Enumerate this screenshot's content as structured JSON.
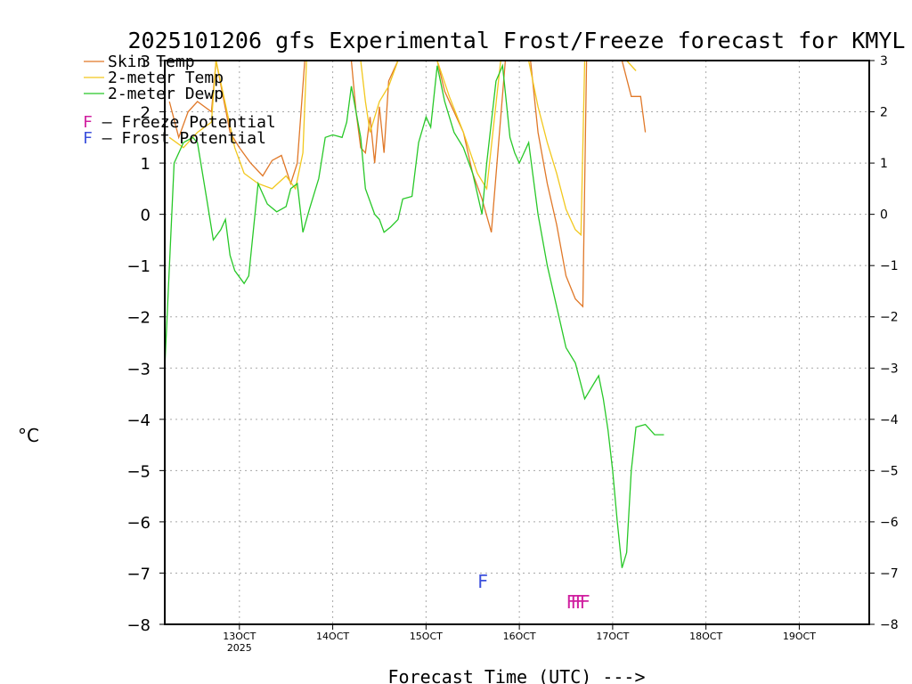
{
  "chart_data": {
    "type": "line",
    "title": "2025101206 gfs Experimental Frost/Freeze forecast for KMYL",
    "xlabel": "Forecast Time (UTC) --->",
    "ylabel": "°C",
    "xlim": [
      12.2,
      19.75
    ],
    "ylim": [
      -8,
      3
    ],
    "yticks": [
      -8,
      -7,
      -6,
      -5,
      -4,
      -3,
      -2,
      -1,
      0,
      1,
      2,
      3
    ],
    "ytick_labels": [
      "−8",
      "−7",
      "−6",
      "−5",
      "−4",
      "−3",
      "−2",
      "−1",
      "0",
      "1",
      "2",
      "3"
    ],
    "xticks": [
      {
        "x": 13,
        "label": "13OCT",
        "sublabel": "2025"
      },
      {
        "x": 14,
        "label": "14OCT"
      },
      {
        "x": 15,
        "label": "15OCT"
      },
      {
        "x": 16,
        "label": "16OCT"
      },
      {
        "x": 17,
        "label": "17OCT"
      },
      {
        "x": 18,
        "label": "18OCT"
      },
      {
        "x": 19,
        "label": "19OCT"
      }
    ],
    "grid": true,
    "series": [
      {
        "name": "Skin Temp",
        "color": "#e07828",
        "points": [
          [
            12.25,
            2.2
          ],
          [
            12.35,
            1.5
          ],
          [
            12.45,
            2.0
          ],
          [
            12.55,
            2.2
          ],
          [
            12.7,
            2.0
          ],
          [
            12.75,
            3.0
          ],
          [
            12.9,
            1.6
          ],
          [
            13.0,
            1.3
          ],
          [
            13.12,
            1.0
          ],
          [
            13.25,
            0.75
          ],
          [
            13.35,
            1.05
          ],
          [
            13.45,
            1.15
          ],
          [
            13.55,
            0.6
          ],
          [
            13.62,
            1.0
          ],
          [
            13.7,
            3.0
          ],
          [
            14.2,
            3.0
          ],
          [
            14.25,
            2.0
          ],
          [
            14.3,
            1.3
          ],
          [
            14.35,
            1.2
          ],
          [
            14.4,
            1.9
          ],
          [
            14.45,
            1.0
          ],
          [
            14.5,
            2.1
          ],
          [
            14.55,
            1.2
          ],
          [
            14.6,
            2.6
          ],
          [
            14.7,
            3.0
          ],
          [
            15.12,
            3.0
          ],
          [
            15.2,
            2.4
          ],
          [
            15.3,
            2.0
          ],
          [
            15.4,
            1.6
          ],
          [
            15.5,
            0.8
          ],
          [
            15.6,
            0.3
          ],
          [
            15.7,
            -0.35
          ],
          [
            15.85,
            3.0
          ],
          [
            16.12,
            3.0
          ],
          [
            16.2,
            1.6
          ],
          [
            16.3,
            0.6
          ],
          [
            16.4,
            -0.2
          ],
          [
            16.5,
            -1.2
          ],
          [
            16.6,
            -1.65
          ],
          [
            16.68,
            -1.8
          ],
          [
            16.72,
            3.0
          ],
          [
            17.1,
            3.0
          ],
          [
            17.2,
            2.3
          ],
          [
            17.3,
            2.3
          ],
          [
            17.35,
            1.6
          ]
        ]
      },
      {
        "name": "2-meter Temp",
        "color": "#f2c81e",
        "points": [
          [
            12.25,
            1.5
          ],
          [
            12.4,
            1.3
          ],
          [
            12.55,
            1.6
          ],
          [
            12.7,
            1.8
          ],
          [
            12.75,
            3.0
          ],
          [
            12.95,
            1.3
          ],
          [
            13.05,
            0.8
          ],
          [
            13.2,
            0.6
          ],
          [
            13.35,
            0.5
          ],
          [
            13.5,
            0.75
          ],
          [
            13.6,
            0.5
          ],
          [
            13.68,
            1.2
          ],
          [
            13.72,
            3.0
          ],
          [
            14.3,
            3.0
          ],
          [
            14.35,
            2.2
          ],
          [
            14.4,
            1.6
          ],
          [
            14.5,
            2.2
          ],
          [
            14.6,
            2.5
          ],
          [
            14.7,
            3.0
          ],
          [
            15.12,
            3.0
          ],
          [
            15.25,
            2.3
          ],
          [
            15.4,
            1.6
          ],
          [
            15.55,
            0.8
          ],
          [
            15.65,
            0.5
          ],
          [
            15.8,
            3.0
          ],
          [
            16.1,
            3.0
          ],
          [
            16.2,
            2.1
          ],
          [
            16.3,
            1.4
          ],
          [
            16.4,
            0.8
          ],
          [
            16.5,
            0.1
          ],
          [
            16.6,
            -0.3
          ],
          [
            16.66,
            -0.4
          ],
          [
            16.7,
            3.0
          ],
          [
            17.15,
            3.0
          ],
          [
            17.25,
            2.8
          ]
        ]
      },
      {
        "name": "2-meter Dewp",
        "color": "#28c828",
        "points": [
          [
            12.2,
            -3.0
          ],
          [
            12.3,
            1.0
          ],
          [
            12.4,
            1.4
          ],
          [
            12.5,
            1.5
          ],
          [
            12.55,
            1.4
          ],
          [
            12.65,
            0.3
          ],
          [
            12.72,
            -0.5
          ],
          [
            12.8,
            -0.3
          ],
          [
            12.85,
            -0.1
          ],
          [
            12.9,
            -0.8
          ],
          [
            12.95,
            -1.1
          ],
          [
            13.05,
            -1.35
          ],
          [
            13.1,
            -1.2
          ],
          [
            13.2,
            0.6
          ],
          [
            13.3,
            0.2
          ],
          [
            13.4,
            0.05
          ],
          [
            13.5,
            0.15
          ],
          [
            13.55,
            0.5
          ],
          [
            13.62,
            0.6
          ],
          [
            13.68,
            -0.35
          ],
          [
            13.75,
            0.1
          ],
          [
            13.85,
            0.7
          ],
          [
            13.92,
            1.5
          ],
          [
            14.0,
            1.55
          ],
          [
            14.1,
            1.5
          ],
          [
            14.15,
            1.8
          ],
          [
            14.2,
            2.5
          ],
          [
            14.3,
            1.5
          ],
          [
            14.35,
            0.5
          ],
          [
            14.45,
            0.0
          ],
          [
            14.5,
            -0.1
          ],
          [
            14.55,
            -0.35
          ],
          [
            14.62,
            -0.25
          ],
          [
            14.7,
            -0.1
          ],
          [
            14.75,
            0.3
          ],
          [
            14.85,
            0.35
          ],
          [
            14.92,
            1.4
          ],
          [
            15.0,
            1.9
          ],
          [
            15.05,
            1.7
          ],
          [
            15.12,
            2.9
          ],
          [
            15.2,
            2.2
          ],
          [
            15.3,
            1.6
          ],
          [
            15.4,
            1.3
          ],
          [
            15.5,
            0.8
          ],
          [
            15.55,
            0.4
          ],
          [
            15.6,
            0.0
          ],
          [
            15.65,
            1.0
          ],
          [
            15.75,
            2.6
          ],
          [
            15.82,
            2.9
          ],
          [
            15.9,
            1.5
          ],
          [
            15.95,
            1.2
          ],
          [
            16.0,
            1.0
          ],
          [
            16.1,
            1.4
          ],
          [
            16.2,
            0.0
          ],
          [
            16.3,
            -1.0
          ],
          [
            16.4,
            -1.8
          ],
          [
            16.5,
            -2.6
          ],
          [
            16.6,
            -2.9
          ],
          [
            16.7,
            -3.6
          ],
          [
            16.8,
            -3.3
          ],
          [
            16.85,
            -3.15
          ],
          [
            16.9,
            -3.6
          ],
          [
            16.95,
            -4.2
          ],
          [
            17.0,
            -5.0
          ],
          [
            17.05,
            -6.0
          ],
          [
            17.1,
            -6.9
          ],
          [
            17.15,
            -6.6
          ],
          [
            17.2,
            -5.0
          ],
          [
            17.25,
            -4.15
          ],
          [
            17.35,
            -4.1
          ],
          [
            17.45,
            -4.3
          ],
          [
            17.55,
            -4.3
          ]
        ]
      }
    ],
    "legend": {
      "entries": [
        "Skin Temp",
        "2-meter Temp",
        "2-meter Dewp"
      ],
      "potentials": [
        {
          "symbol": "F",
          "text": " – Freeze Potential",
          "color": "#d020a0"
        },
        {
          "symbol": "F",
          "text": " – Frost Potential",
          "color": "#3c50dc"
        }
      ],
      "position": "top-left"
    },
    "annotations": [
      {
        "text": "F",
        "x": 15.55,
        "y": -7.15,
        "color": "#3c50dc",
        "kind": "frost"
      },
      {
        "text": "FFFF",
        "x": 16.5,
        "y": -7.55,
        "color": "#d020a0",
        "kind": "freeze"
      }
    ]
  }
}
